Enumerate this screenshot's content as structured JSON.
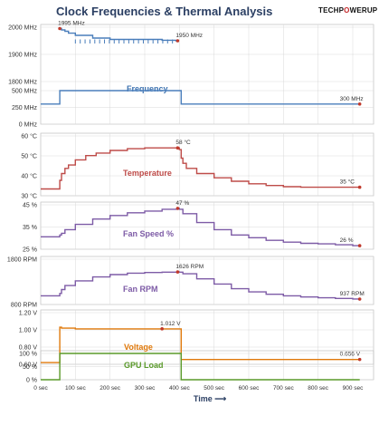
{
  "title": "Clock Frequencies & Thermal  Analysis",
  "logo": {
    "part1": "TECHP",
    "o": "O",
    "part2": "WERUP"
  },
  "x_axis": {
    "label": "Time ⟶",
    "ticks": [
      "0 sec",
      "100 sec",
      "200 sec",
      "300 sec",
      "400 sec",
      "500 sec",
      "600 sec",
      "700 sec",
      "800 sec",
      "900 sec"
    ]
  },
  "colors": {
    "frequency": "#4a7ebb",
    "temperature": "#be4b48",
    "fan": "#7d5ba6",
    "voltage": "#e0790b",
    "load": "#5a9a2a",
    "grid": "#d9d9d9",
    "marker": "#c0392b"
  },
  "chart_data": [
    {
      "type": "line",
      "name": "Frequency (boost)",
      "label": "Frequency",
      "yticks": [
        "2000 MHz",
        "1900 MHz",
        "1800 MHz"
      ],
      "ylim": [
        1800,
        2000
      ],
      "x": [
        0,
        50,
        55,
        60,
        70,
        80,
        100,
        150,
        200,
        250,
        300,
        350,
        390,
        395,
        398,
        400
      ],
      "y": [
        null,
        null,
        1995,
        1990,
        1985,
        1978,
        1970,
        1960,
        1955,
        1955,
        1955,
        1952,
        1950,
        1950,
        1950,
        null
      ],
      "annotations": [
        {
          "x": 55,
          "y": 1995,
          "text": "1995 MHz"
        },
        {
          "x": 395,
          "y": 1950,
          "text": "1950 MHz"
        }
      ]
    },
    {
      "type": "line",
      "name": "Frequency (idle)",
      "yticks": [
        "500 MHz",
        "250 MHz",
        "0 MHz"
      ],
      "ylim": [
        0,
        500
      ],
      "x": [
        0,
        50,
        55,
        400,
        405,
        500,
        600,
        700,
        800,
        900,
        920
      ],
      "y": [
        300,
        300,
        500,
        500,
        300,
        300,
        300,
        300,
        300,
        300,
        300
      ],
      "annotations": [
        {
          "x": 920,
          "y": 300,
          "text": "300 MHz"
        }
      ]
    },
    {
      "type": "line",
      "name": "Temperature",
      "label": "Temperature",
      "yticks": [
        "60 °C",
        "50 °C",
        "40 °C",
        "30 °C"
      ],
      "ylim": [
        30,
        65
      ],
      "x": [
        0,
        50,
        55,
        60,
        70,
        80,
        100,
        130,
        160,
        200,
        250,
        300,
        350,
        395,
        400,
        405,
        410,
        420,
        450,
        500,
        550,
        600,
        650,
        700,
        750,
        800,
        850,
        900,
        920
      ],
      "y": [
        34,
        34,
        39,
        43,
        46,
        48,
        51,
        53.5,
        55,
        56.5,
        57.5,
        58,
        58,
        58,
        57,
        52,
        49,
        46,
        43,
        40.5,
        38.5,
        37,
        36,
        35.3,
        35,
        35,
        35,
        35,
        35
      ],
      "annotations": [
        {
          "x": 395,
          "y": 58,
          "text": "58 °C"
        },
        {
          "x": 920,
          "y": 35,
          "text": "35 °C"
        }
      ]
    },
    {
      "type": "line",
      "name": "Fan Speed %",
      "label": "Fan Speed %",
      "yticks": [
        "45 %",
        "35 %",
        "25 %"
      ],
      "ylim": [
        24,
        49
      ],
      "x": [
        0,
        50,
        55,
        60,
        70,
        100,
        150,
        200,
        250,
        300,
        350,
        395,
        400,
        410,
        450,
        500,
        550,
        600,
        650,
        700,
        750,
        800,
        850,
        900,
        920
      ],
      "y": [
        31,
        31,
        32,
        33,
        35,
        38,
        41,
        43,
        44.5,
        45.5,
        46.5,
        47,
        46.5,
        44,
        39,
        35,
        32,
        30.5,
        29,
        28,
        27.3,
        27,
        26.5,
        26,
        26
      ],
      "annotations": [
        {
          "x": 395,
          "y": 47,
          "text": "47 %"
        },
        {
          "x": 920,
          "y": 26,
          "text": "26 %"
        }
      ]
    },
    {
      "type": "line",
      "name": "Fan RPM",
      "label": "Fan RPM",
      "yticks": [
        "1800 RPM",
        "800 RPM"
      ],
      "ylim": [
        800,
        1950
      ],
      "x": [
        0,
        50,
        55,
        60,
        70,
        100,
        150,
        200,
        250,
        300,
        350,
        395,
        400,
        410,
        450,
        500,
        550,
        600,
        650,
        700,
        750,
        800,
        850,
        900,
        920
      ],
      "y": [
        1020,
        1020,
        1080,
        1180,
        1280,
        1400,
        1500,
        1560,
        1595,
        1612,
        1620,
        1626,
        1620,
        1580,
        1450,
        1320,
        1200,
        1120,
        1060,
        1020,
        990,
        970,
        955,
        940,
        937
      ],
      "annotations": [
        {
          "x": 395,
          "y": 1626,
          "text": "1626 RPM"
        },
        {
          "x": 920,
          "y": 937,
          "text": "937 RPM"
        }
      ]
    },
    {
      "type": "line",
      "name": "Voltage",
      "label": "Voltage",
      "yticks": [
        "1.20 V",
        "1.00 V",
        "0.80 V",
        "0.60 V"
      ],
      "ylim": [
        0.6,
        1.2
      ],
      "x": [
        0,
        50,
        55,
        60,
        100,
        150,
        200,
        250,
        300,
        350,
        395,
        400,
        405,
        500,
        600,
        700,
        800,
        900,
        920
      ],
      "y": [
        0.62,
        0.62,
        1.03,
        1.02,
        1.012,
        1.012,
        1.012,
        1.012,
        1.012,
        1.012,
        1.012,
        1.012,
        0.656,
        0.656,
        0.656,
        0.656,
        0.656,
        0.656,
        0.656
      ],
      "annotations": [
        {
          "x": 350,
          "y": 1.012,
          "text": "1.012 V"
        },
        {
          "x": 920,
          "y": 0.656,
          "text": "0.656 V"
        }
      ]
    },
    {
      "type": "line",
      "name": "GPU Load",
      "label": "GPU Load",
      "yticks": [
        "100 %",
        "50 %",
        "0 %"
      ],
      "ylim": [
        0,
        100
      ],
      "x": [
        0,
        50,
        55,
        400,
        405,
        500,
        600,
        700,
        800,
        900,
        920
      ],
      "y": [
        0,
        0,
        100,
        100,
        0,
        0,
        0,
        0,
        0,
        0,
        0
      ]
    }
  ]
}
